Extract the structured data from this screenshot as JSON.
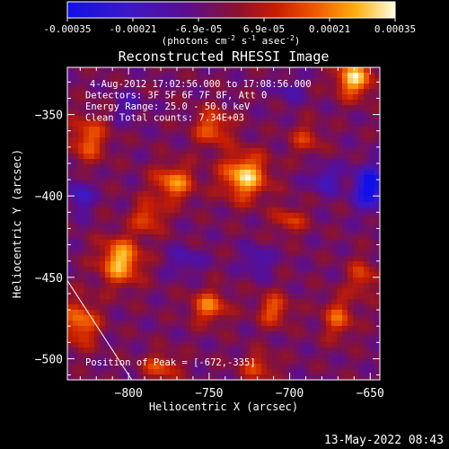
{
  "chart_data": {
    "type": "heatmap",
    "title": "Reconstructed RHESSI Image",
    "xlabel": "Heliocentric X (arcsec)",
    "ylabel": "Heliocentric Y (arcsec)",
    "xlim": [
      -838,
      -644
    ],
    "ylim": [
      -513,
      -321
    ],
    "xticks": [
      -800,
      -750,
      -700,
      -650
    ],
    "yticks": [
      -350,
      -400,
      -450,
      -500
    ],
    "colorbar": {
      "range": [
        -0.00035,
        0.00035
      ],
      "ticks": [
        "-0.00035",
        "-0.00021",
        "-6.9e-05",
        "6.9e-05",
        "0.00021",
        "0.00035"
      ],
      "label": "(photons cm",
      "label_exp1": "-2",
      "label_mid": " s",
      "label_exp2": "-1",
      "label_end": " asec",
      "label_exp3": "-2",
      "label_close": ")"
    },
    "annotations": [
      "4-Aug-2012 17:02:56.000 to 17:08:56.000",
      "Detectors: 3F 5F 6F 7F 8F, Att 0",
      "Energy Range: 25.0 - 50.0 keV",
      "Clean     Total counts: 7.34E+03"
    ],
    "peak_label": "Position of Peak = [-672,-335]",
    "peak_position": [
      -672,
      -335
    ],
    "limb_line": [
      [
        -838,
        -452
      ],
      [
        -798,
        -513
      ]
    ],
    "blobs": [
      {
        "x": -660,
        "y": -328,
        "v": 0.00034,
        "sx": 8,
        "sy": 8
      },
      {
        "x": -728,
        "y": -388,
        "v": 0.00034,
        "sx": 10,
        "sy": 10
      },
      {
        "x": -805,
        "y": -440,
        "v": 0.00033,
        "sx": 9,
        "sy": 10
      },
      {
        "x": -772,
        "y": -392,
        "v": 0.00026,
        "sx": 9,
        "sy": 8
      },
      {
        "x": -748,
        "y": -358,
        "v": 0.00022,
        "sx": 8,
        "sy": 8
      },
      {
        "x": -825,
        "y": -365,
        "v": 0.00022,
        "sx": 8,
        "sy": 10
      },
      {
        "x": -788,
        "y": -413,
        "v": 0.0002,
        "sx": 7,
        "sy": 7
      },
      {
        "x": -830,
        "y": -478,
        "v": 0.00025,
        "sx": 8,
        "sy": 10
      },
      {
        "x": -750,
        "y": -468,
        "v": 0.00024,
        "sx": 8,
        "sy": 7
      },
      {
        "x": -710,
        "y": -470,
        "v": 0.00021,
        "sx": 7,
        "sy": 7
      },
      {
        "x": -670,
        "y": -475,
        "v": 0.0002,
        "sx": 7,
        "sy": 9
      },
      {
        "x": -700,
        "y": -415,
        "v": 0.00017,
        "sx": 7,
        "sy": 6
      },
      {
        "x": -655,
        "y": -450,
        "v": 0.00018,
        "sx": 6,
        "sy": 8
      },
      {
        "x": -690,
        "y": -365,
        "v": 0.00015,
        "sx": 7,
        "sy": 7
      },
      {
        "x": -780,
        "y": -505,
        "v": 0.00019,
        "sx": 8,
        "sy": 6
      },
      {
        "x": -720,
        "y": -505,
        "v": 0.00017,
        "sx": 8,
        "sy": 6
      },
      {
        "x": -650,
        "y": -395,
        "v": -0.00034,
        "sx": 7,
        "sy": 9
      },
      {
        "x": -678,
        "y": -390,
        "v": -0.00016,
        "sx": 6,
        "sy": 6
      },
      {
        "x": -830,
        "y": -400,
        "v": -0.00018,
        "sx": 5,
        "sy": 7
      },
      {
        "x": -765,
        "y": -440,
        "v": -0.00012,
        "sx": 7,
        "sy": 6
      },
      {
        "x": -720,
        "y": -440,
        "v": -0.00014,
        "sx": 6,
        "sy": 6
      },
      {
        "x": -800,
        "y": -345,
        "v": -0.00012,
        "sx": 6,
        "sy": 6
      },
      {
        "x": -700,
        "y": -335,
        "v": -0.0001,
        "sx": 6,
        "sy": 6
      }
    ]
  },
  "footer": {
    "timestamp": "13-May-2022 08:43"
  }
}
